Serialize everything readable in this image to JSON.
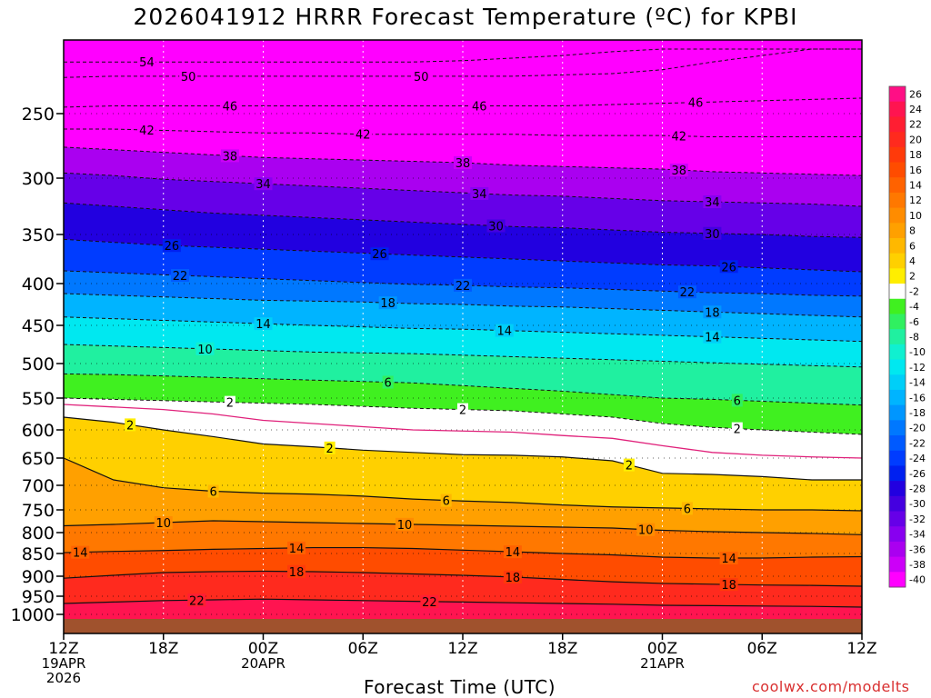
{
  "chart_data": {
    "type": "heatmap",
    "title": "2026041912 HRRR Forecast Temperature (ºC) for KPBI",
    "xlabel": "Forecast Time (UTC)",
    "ylabel": "",
    "credit": "coolwx.com/modelts",
    "x_ticks": [
      {
        "hour": 0,
        "lines": [
          "12Z",
          "19APR",
          "2026"
        ]
      },
      {
        "hour": 6,
        "lines": [
          "18Z"
        ]
      },
      {
        "hour": 12,
        "lines": [
          "00Z",
          "20APR"
        ]
      },
      {
        "hour": 18,
        "lines": [
          "06Z"
        ]
      },
      {
        "hour": 24,
        "lines": [
          "12Z"
        ]
      },
      {
        "hour": 30,
        "lines": [
          "18Z"
        ]
      },
      {
        "hour": 36,
        "lines": [
          "00Z",
          "21APR"
        ]
      },
      {
        "hour": 42,
        "lines": [
          "06Z"
        ]
      },
      {
        "hour": 48,
        "lines": [
          "12Z"
        ]
      }
    ],
    "xlim": [
      0,
      48
    ],
    "y_ticks": [
      250,
      300,
      350,
      400,
      450,
      500,
      550,
      600,
      650,
      700,
      750,
      800,
      850,
      900,
      950,
      1000
    ],
    "ylim": [
      200,
      1030
    ],
    "colorbar": {
      "labels": [
        "26",
        "24",
        "22",
        "20",
        "18",
        "16",
        "14",
        "12",
        "10",
        "8",
        "6",
        "4",
        "2",
        "-2",
        "-4",
        "-6",
        "-8",
        "-10",
        "-12",
        "-14",
        "-16",
        "-18",
        "-20",
        "-22",
        "-24",
        "-26",
        "-28",
        "-30",
        "-32",
        "-34",
        "-36",
        "-38",
        "-40"
      ],
      "colors": [
        "#ff0f85",
        "#ff1450",
        "#ff1e32",
        "#ff2a1e",
        "#ff3a0a",
        "#ff4c00",
        "#ff6200",
        "#ff7800",
        "#ff8c00",
        "#ffa000",
        "#ffb800",
        "#ffd000",
        "#ffee00",
        "#ffffff",
        "#40f020",
        "#30f060",
        "#20f0a0",
        "#10f0d0",
        "#00e8f0",
        "#00cff8",
        "#00b4ff",
        "#0096ff",
        "#0078ff",
        "#005aff",
        "#003cff",
        "#0020f0",
        "#2200e0",
        "#4400e0",
        "#6600e8",
        "#8800f0",
        "#aa00f0",
        "#cc00f8",
        "#ff00ff"
      ]
    },
    "contours": [
      {
        "value": -54,
        "label": "54",
        "pressures": [
          210,
          210,
          210,
          210,
          210,
          210,
          210,
          210,
          209,
          207,
          205,
          202,
          200,
          200,
          200,
          200,
          200
        ]
      },
      {
        "value": -50,
        "label": "50",
        "pressures": [
          222,
          221,
          221,
          221,
          221,
          221,
          221,
          221,
          221,
          221,
          220,
          219,
          216,
          210,
          205,
          200,
          200
        ]
      },
      {
        "value": -46,
        "label": "46",
        "pressures": [
          245,
          244,
          244,
          244,
          244,
          244,
          244,
          244,
          244,
          244,
          244,
          243,
          242,
          241,
          240,
          239,
          238
        ]
      },
      {
        "value": -42,
        "label": "42",
        "pressures": [
          262,
          262,
          263,
          264,
          265,
          265,
          266,
          266,
          266,
          266,
          267,
          267,
          267,
          268,
          268,
          268,
          268
        ]
      },
      {
        "value": -38,
        "label": "38",
        "pressures": [
          276,
          278,
          280,
          282,
          284,
          285,
          286,
          287,
          288,
          290,
          291,
          292,
          293,
          295,
          296,
          297,
          298
        ]
      },
      {
        "value": -34,
        "label": "34",
        "pressures": [
          296,
          298,
          301,
          303,
          305,
          307,
          309,
          311,
          313,
          315,
          316,
          318,
          320,
          321,
          322,
          323,
          325
        ]
      },
      {
        "value": -30,
        "label": "30",
        "pressures": [
          322,
          325,
          328,
          331,
          333,
          335,
          337,
          339,
          341,
          343,
          344,
          346,
          348,
          349,
          350,
          352,
          353
        ]
      },
      {
        "value": -26,
        "label": "26",
        "pressures": [
          355,
          358,
          361,
          363,
          365,
          367,
          369,
          371,
          373,
          375,
          377,
          379,
          381,
          382,
          384,
          386,
          388
        ]
      },
      {
        "value": -22,
        "label": "22",
        "pressures": [
          387,
          389,
          391,
          393,
          395,
          397,
          399,
          401,
          402,
          404,
          405,
          407,
          409,
          411,
          412,
          414,
          415
        ]
      },
      {
        "value": -18,
        "label": "18",
        "pressures": [
          412,
          414,
          416,
          418,
          420,
          421,
          422,
          424,
          425,
          427,
          428,
          430,
          432,
          434,
          436,
          438,
          440
        ]
      },
      {
        "value": -14,
        "label": "14",
        "pressures": [
          440,
          442,
          444,
          446,
          448,
          450,
          452,
          454,
          455,
          457,
          459,
          461,
          463,
          465,
          467,
          469,
          471
        ]
      },
      {
        "value": -10,
        "label": "10",
        "pressures": [
          475,
          477,
          479,
          481,
          483,
          485,
          486,
          487,
          489,
          491,
          493,
          495,
          497,
          499,
          501,
          503,
          505
        ]
      },
      {
        "value": -6,
        "label": "6",
        "pressures": [
          515,
          516,
          518,
          520,
          522,
          524,
          526,
          528,
          532,
          536,
          540,
          545,
          550,
          552,
          555,
          558,
          561
        ]
      },
      {
        "value": -2,
        "label": "2",
        "pressures": [
          550,
          552,
          554,
          556,
          558,
          560,
          563,
          566,
          568,
          570,
          575,
          580,
          590,
          596,
          600,
          604,
          608
        ]
      },
      {
        "value": 0,
        "label": "",
        "pressures": [
          560,
          564,
          568,
          575,
          585,
          590,
          595,
          600,
          602,
          604,
          610,
          615,
          628,
          640,
          645,
          648,
          650
        ]
      },
      {
        "value": 2,
        "label": "2",
        "pressures": [
          580,
          588,
          600,
          612,
          625,
          630,
          636,
          640,
          644,
          645,
          648,
          655,
          678,
          680,
          684,
          690,
          690
        ]
      },
      {
        "value": 6,
        "label": "6",
        "pressures": [
          650,
          690,
          705,
          712,
          716,
          718,
          722,
          728,
          732,
          735,
          740,
          744,
          746,
          748,
          750,
          750,
          752
        ]
      },
      {
        "value": 10,
        "label": "10",
        "pressures": [
          785,
          782,
          778,
          774,
          776,
          778,
          780,
          782,
          784,
          786,
          788,
          790,
          795,
          798,
          800,
          802,
          805
        ]
      },
      {
        "value": 14,
        "label": "14",
        "pressures": [
          848,
          845,
          843,
          840,
          838,
          836,
          836,
          838,
          842,
          846,
          850,
          853,
          858,
          860,
          860,
          858,
          857
        ]
      },
      {
        "value": 18,
        "label": "18",
        "pressures": [
          905,
          898,
          892,
          890,
          889,
          890,
          892,
          895,
          898,
          902,
          908,
          914,
          918,
          920,
          922,
          923,
          925
        ]
      },
      {
        "value": 22,
        "label": "22",
        "pressures": [
          970,
          966,
          962,
          960,
          958,
          960,
          962,
          964,
          966,
          968,
          970,
          972,
          975,
          976,
          977,
          978,
          980
        ]
      }
    ],
    "contour_labels": [
      {
        "value": -54,
        "hour": 5
      },
      {
        "value": -50,
        "hour": 7.5
      },
      {
        "value": -50,
        "hour": 21.5
      },
      {
        "value": -46,
        "hour": 10
      },
      {
        "value": -46,
        "hour": 25
      },
      {
        "value": -46,
        "hour": 38
      },
      {
        "value": -42,
        "hour": 5
      },
      {
        "value": -42,
        "hour": 18
      },
      {
        "value": -42,
        "hour": 37
      },
      {
        "value": -38,
        "hour": 10
      },
      {
        "value": -38,
        "hour": 24
      },
      {
        "value": -38,
        "hour": 37
      },
      {
        "value": -34,
        "hour": 12
      },
      {
        "value": -34,
        "hour": 25
      },
      {
        "value": -34,
        "hour": 39
      },
      {
        "value": -30,
        "hour": 26
      },
      {
        "value": -30,
        "hour": 39
      },
      {
        "value": -26,
        "hour": 6.5
      },
      {
        "value": -26,
        "hour": 19
      },
      {
        "value": -26,
        "hour": 40
      },
      {
        "value": -22,
        "hour": 7
      },
      {
        "value": -22,
        "hour": 24
      },
      {
        "value": -22,
        "hour": 37.5
      },
      {
        "value": -18,
        "hour": 19.5
      },
      {
        "value": -18,
        "hour": 39
      },
      {
        "value": -14,
        "hour": 12
      },
      {
        "value": -14,
        "hour": 26.5
      },
      {
        "value": -14,
        "hour": 39
      },
      {
        "value": -10,
        "hour": 8.5
      },
      {
        "value": -6,
        "hour": 19.5
      },
      {
        "value": -6,
        "hour": 40.5
      },
      {
        "value": -2,
        "hour": 10
      },
      {
        "value": -2,
        "hour": 24
      },
      {
        "value": -2,
        "hour": 40.5
      },
      {
        "value": 2,
        "hour": 4
      },
      {
        "value": 2,
        "hour": 16
      },
      {
        "value": 2,
        "hour": 34
      },
      {
        "value": 6,
        "hour": 9
      },
      {
        "value": 6,
        "hour": 23
      },
      {
        "value": 6,
        "hour": 37.5
      },
      {
        "value": 10,
        "hour": 6
      },
      {
        "value": 10,
        "hour": 20.5
      },
      {
        "value": 10,
        "hour": 35
      },
      {
        "value": 14,
        "hour": 1
      },
      {
        "value": 14,
        "hour": 14
      },
      {
        "value": 14,
        "hour": 27
      },
      {
        "value": 14,
        "hour": 40
      },
      {
        "value": 18,
        "hour": 14
      },
      {
        "value": 18,
        "hour": 27
      },
      {
        "value": 18,
        "hour": 40
      },
      {
        "value": 22,
        "hour": 8
      },
      {
        "value": 22,
        "hour": 22
      }
    ]
  }
}
